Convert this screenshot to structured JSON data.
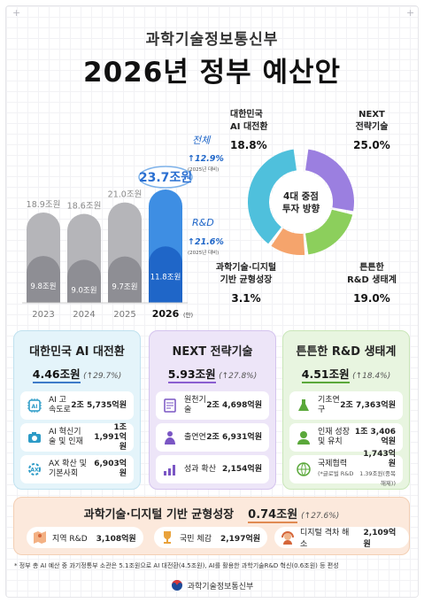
{
  "header": {
    "ministry": "과학기술정보통신부",
    "title_main": "2026년 정부 ",
    "title_highlight": "예산안"
  },
  "chart_data": [
    {
      "type": "bar",
      "categories": [
        "2023",
        "2024",
        "2025",
        "2026"
      ],
      "category_suffix_2026": "(안)",
      "series": [
        {
          "name": "전체",
          "values": [
            18.9,
            18.6,
            21.0,
            23.7
          ],
          "labels": [
            "18.9조원",
            "18.6조원",
            "21.0조원",
            "23.7조원"
          ]
        },
        {
          "name": "R&D",
          "values": [
            9.8,
            9.0,
            9.7,
            11.8
          ],
          "labels": [
            "9.8조원",
            "9.0조원",
            "9.7조원",
            "11.8조원"
          ]
        }
      ],
      "annotations": [
        {
          "series": "전체",
          "growth": "↑12.9%",
          "note": "(2025년 대비)"
        },
        {
          "series": "R&D",
          "growth": "↑21.6%",
          "note": "(2025년 대비)"
        }
      ]
    },
    {
      "type": "pie",
      "center_label_1": "4대 중점",
      "center_label_2": "투자 방향",
      "slices": [
        {
          "label_1": "NEXT",
          "label_2": "전략기술",
          "value": 25.0,
          "text": "25.0%",
          "color": "#9b7fe0"
        },
        {
          "label_1": "튼튼한",
          "label_2": "R&D 생태계",
          "value": 19.0,
          "text": "19.0%",
          "color": "#8ccf5c"
        },
        {
          "label_1": "과학기술·디지털",
          "label_2": "기반 균형성장",
          "value": 3.1,
          "text": "3.1%",
          "color": "#f5a46c"
        },
        {
          "label_1": "대한민국",
          "label_2": "AI 대전환",
          "value": 18.8,
          "text": "18.8%",
          "color": "#4fc0dc"
        }
      ]
    }
  ],
  "panels": {
    "ai": {
      "title": "대한민국 AI 대전환",
      "amount": "4.46조원",
      "growth": "(↑29.7%)",
      "items": [
        {
          "name": "AI 고속도로",
          "value": "2조 5,735억원",
          "icon": "ai-chip-icon"
        },
        {
          "name": "AI 혁신기술 및 인재",
          "value": "1조 1,991억원",
          "icon": "camera-icon"
        },
        {
          "name": "AX 확산 및 기본사회",
          "value": "6,903억원",
          "icon": "ax-gear-icon"
        }
      ]
    },
    "next": {
      "title": "NEXT 전략기술",
      "amount": "5.93조원",
      "growth": "(↑27.8%)",
      "items": [
        {
          "name": "원천기술",
          "value": "2조 4,698억원",
          "icon": "document-icon"
        },
        {
          "name": "출연연",
          "value": "2조 6,931억원",
          "icon": "researcher-icon"
        },
        {
          "name": "성과 확산",
          "value": "2,154억원",
          "icon": "growth-chart-icon"
        }
      ]
    },
    "rd": {
      "title": "튼튼한 R&D 생태계",
      "amount": "4.51조원",
      "growth": "(↑18.4%)",
      "items": [
        {
          "name": "기초연구",
          "value": "2조 7,363억원",
          "sub": "",
          "icon": "flask-icon"
        },
        {
          "name": "인재 성장 및 유치",
          "value": "1조 3,406억원",
          "sub": "",
          "icon": "person-icon"
        },
        {
          "name": "국제협력",
          "name_sub": "(*글로벌 R&D",
          "value": "1,743억원",
          "sub": "1.39조원(중복해제))",
          "icon": "globe-icon"
        }
      ]
    }
  },
  "bottom": {
    "title": "과학기술·디지털 기반 균형성장",
    "amount": "0.74조원",
    "growth": "(↑27.6%)",
    "items": [
      {
        "name": "지역 R&D",
        "value": "3,108억원",
        "icon": "map-icon"
      },
      {
        "name": "국민 체감",
        "value": "2,197억원",
        "icon": "trophy-icon"
      },
      {
        "name": "디지털 격차 해소",
        "value": "2,109억원",
        "icon": "headset-icon"
      }
    ]
  },
  "note": "* 정부 총 AI 예산 중 과기정통부 소관은 5.1조원으로 AI 대전환(4.5조원), AI를 활용한 과학기술R&D 혁신(0.6조원) 등 편성",
  "footer": {
    "org": "과학기술정보통신부"
  },
  "colors": {
    "bar_total": "#b5b5b9",
    "bar_total_2026": "#3e8ee3",
    "bar_rd": "#8e8e94",
    "bar_rd_2026": "#1f66c8",
    "accent": "#2a6fd1"
  }
}
